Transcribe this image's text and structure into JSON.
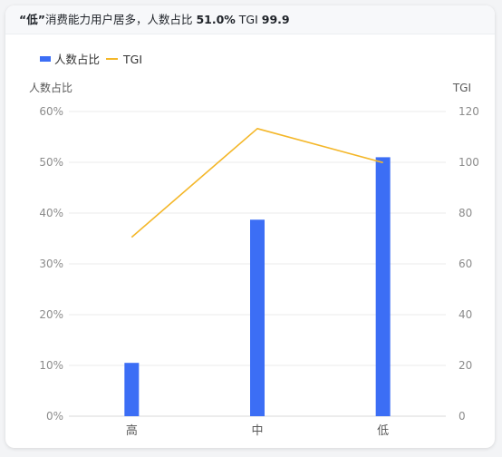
{
  "header": {
    "quote_open": "“",
    "highlight": "低",
    "quote_close": "”",
    "text1": "消费能力用户居多，人数占比 ",
    "share_value": "51.0%",
    "tgi_label": " TGI ",
    "tgi_value": "99.9"
  },
  "colors": {
    "bar": "#3c6ef5",
    "line": "#f4b729",
    "grid": "#ebebeb",
    "axis": "#d9d9d9"
  },
  "chart_data": {
    "type": "bar+line",
    "categories": [
      "高",
      "中",
      "低"
    ],
    "series": [
      {
        "name": "人数占比",
        "type": "bar",
        "axis": "left",
        "values": [
          10.5,
          38.7,
          51.0
        ]
      },
      {
        "name": "TGI",
        "type": "line",
        "axis": "right",
        "values": [
          70.5,
          113.3,
          99.9
        ]
      }
    ],
    "ylabel_left": "人数占比",
    "ylabel_right": "TGI",
    "ylim_left": [
      0,
      60
    ],
    "ylim_right": [
      0,
      120
    ],
    "yticks_left": [
      "0%",
      "10%",
      "20%",
      "30%",
      "40%",
      "50%",
      "60%"
    ],
    "yticks_right": [
      "0",
      "20",
      "40",
      "60",
      "80",
      "100",
      "120"
    ],
    "legend": "top-left",
    "grid": true
  }
}
